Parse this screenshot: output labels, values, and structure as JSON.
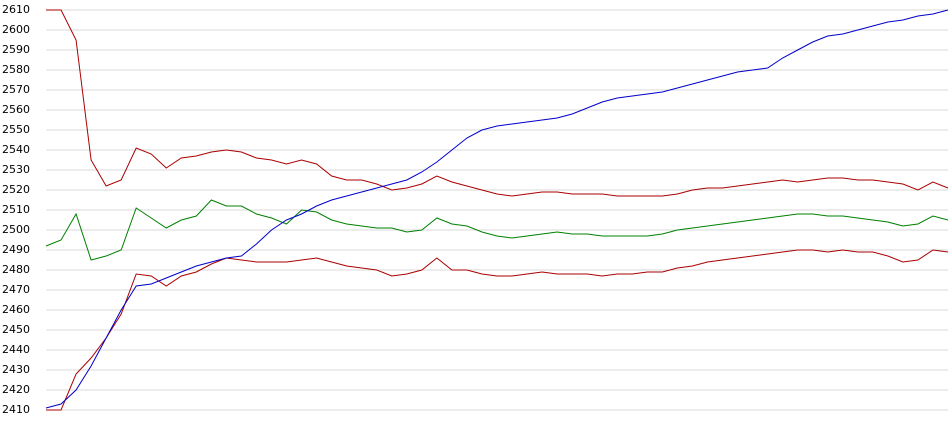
{
  "chart_data": {
    "type": "line",
    "ylim": [
      2410,
      2610
    ],
    "yticks": [
      2410,
      2420,
      2430,
      2440,
      2450,
      2460,
      2470,
      2480,
      2490,
      2500,
      2510,
      2520,
      2530,
      2540,
      2550,
      2560,
      2570,
      2580,
      2590,
      2600,
      2610
    ],
    "grid": true,
    "series": [
      {
        "color": "#aa0000",
        "values": [
          2610,
          2610,
          2595,
          2535,
          2522,
          2525,
          2541,
          2538,
          2531,
          2536,
          2537,
          2539,
          2540,
          2539,
          2536,
          2535,
          2533,
          2535,
          2533,
          2527,
          2525,
          2525,
          2523,
          2520,
          2521,
          2523,
          2527,
          2524,
          2522,
          2520,
          2518,
          2517,
          2518,
          2519,
          2519,
          2518,
          2518,
          2518,
          2517,
          2517,
          2517,
          2517,
          2518,
          2520,
          2521,
          2521,
          2522,
          2523,
          2524,
          2525,
          2524,
          2525,
          2526,
          2526,
          2525,
          2525,
          2524,
          2523,
          2520,
          2524,
          2521
        ]
      },
      {
        "color": "#008000",
        "values": [
          2492,
          2495,
          2508,
          2485,
          2487,
          2490,
          2511,
          2506,
          2501,
          2505,
          2507,
          2515,
          2512,
          2512,
          2508,
          2506,
          2503,
          2510,
          2509,
          2505,
          2503,
          2502,
          2501,
          2501,
          2499,
          2500,
          2506,
          2503,
          2502,
          2499,
          2497,
          2496,
          2497,
          2498,
          2499,
          2498,
          2498,
          2497,
          2497,
          2497,
          2497,
          2498,
          2500,
          2501,
          2502,
          2503,
          2504,
          2505,
          2506,
          2507,
          2508,
          2508,
          2507,
          2507,
          2506,
          2505,
          2504,
          2502,
          2503,
          2507,
          2505
        ]
      },
      {
        "color": "#aa0000",
        "values": [
          2410,
          2410,
          2428,
          2436,
          2446,
          2458,
          2478,
          2477,
          2472,
          2477,
          2479,
          2483,
          2486,
          2485,
          2484,
          2484,
          2484,
          2485,
          2486,
          2484,
          2482,
          2481,
          2480,
          2477,
          2478,
          2480,
          2486,
          2480,
          2480,
          2478,
          2477,
          2477,
          2478,
          2479,
          2478,
          2478,
          2478,
          2477,
          2478,
          2478,
          2479,
          2479,
          2481,
          2482,
          2484,
          2485,
          2486,
          2487,
          2488,
          2489,
          2490,
          2490,
          2489,
          2490,
          2489,
          2489,
          2487,
          2484,
          2485,
          2490,
          2489
        ]
      },
      {
        "color": "#0000cc",
        "values": [
          2411,
          2413,
          2420,
          2432,
          2446,
          2460,
          2472,
          2473,
          2476,
          2479,
          2482,
          2484,
          2486,
          2487,
          2493,
          2500,
          2505,
          2508,
          2512,
          2515,
          2517,
          2519,
          2521,
          2523,
          2525,
          2529,
          2534,
          2540,
          2546,
          2550,
          2552,
          2553,
          2554,
          2555,
          2556,
          2558,
          2561,
          2564,
          2566,
          2567,
          2568,
          2569,
          2571,
          2573,
          2575,
          2577,
          2579,
          2580,
          2581,
          2586,
          2590,
          2594,
          2597,
          2598,
          2600,
          2602,
          2604,
          2605,
          2607,
          2608,
          2610
        ]
      }
    ]
  }
}
